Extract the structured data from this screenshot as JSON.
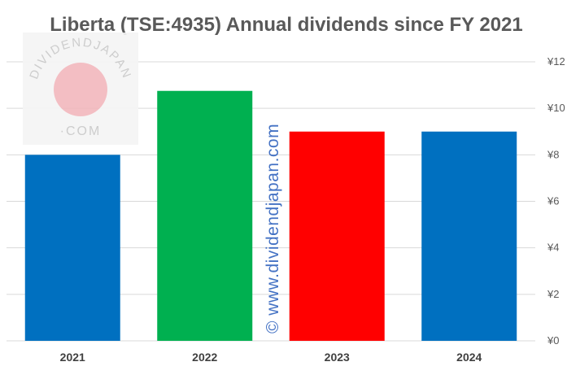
{
  "chart_data": {
    "type": "bar",
    "title": "Liberta (TSE:4935) Annual dividends since FY 2021",
    "categories": [
      "2021",
      "2022",
      "2023",
      "2024"
    ],
    "values": [
      8,
      10.75,
      9,
      9
    ],
    "bar_colors": [
      "#0070C0",
      "#00B050",
      "#FF0000",
      "#0070C0"
    ],
    "ylim": [
      0,
      12
    ],
    "yticks": [
      0,
      2,
      4,
      6,
      8,
      10,
      12
    ],
    "ytick_labels": [
      "¥0",
      "¥2",
      "¥4",
      "¥6",
      "¥8",
      "¥10",
      "¥12"
    ],
    "xlabel": "",
    "ylabel": "",
    "grid": true,
    "y_axis_side": "right"
  },
  "watermark": {
    "logo_top": "DIVIDENDJAPAN",
    "logo_bottom": "·COM",
    "vertical_text": "© www.dividendjapan.com",
    "logo_circle_color": "#f2b8bd",
    "text_color": "#4472C4"
  }
}
